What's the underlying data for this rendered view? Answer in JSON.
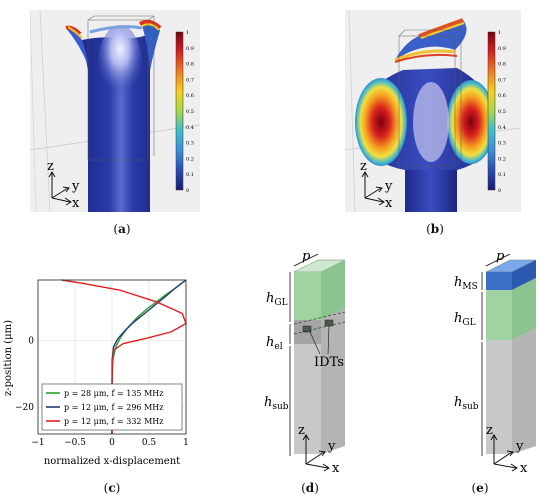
{
  "captions": {
    "a": "a",
    "b": "b",
    "c": "c",
    "d": "d",
    "e": "e"
  },
  "colorbar_ticks": [
    "1",
    "0.9",
    "0.8",
    "0.7",
    "0.6",
    "0.5",
    "0.4",
    "0.3",
    "0.2",
    "0.1",
    "0"
  ],
  "sim_axes": {
    "z": "z",
    "y": "y",
    "x": "x"
  },
  "panel_d": {
    "p": "p",
    "h_gl": "h",
    "h_gl_sub": "GL",
    "h_el": "h",
    "h_el_sub": "el",
    "idts": "IDTs",
    "h_sub": "h",
    "h_sub_sub": "sub",
    "axes": {
      "z": "z",
      "y": "y",
      "x": "x"
    }
  },
  "panel_e": {
    "p": "p",
    "h_ms": "h",
    "h_ms_sub": "MS",
    "h_gl": "h",
    "h_gl_sub": "GL",
    "h_sub": "h",
    "h_sub_sub": "sub",
    "axes": {
      "z": "z",
      "y": "y",
      "x": "x"
    }
  },
  "chart_data": {
    "type": "line",
    "xlabel": "normalized x-displacement",
    "ylabel": "z-position (μm)",
    "xlim": [
      -1,
      1
    ],
    "ylim": [
      -28,
      18
    ],
    "xticks": [
      "−1",
      "−0.5",
      "0",
      "0.5",
      "1"
    ],
    "yticks": [
      "0",
      "−20"
    ],
    "grid": true,
    "legend_position": "bottom",
    "series": [
      {
        "name": "p = 28 μm, f = 135 MHz",
        "color": "#2ca02c",
        "x": [
          0,
          0.002,
          0.01,
          0.05,
          0.12,
          0.22,
          0.35,
          0.48,
          0.6,
          0.72,
          0.85,
          1.0
        ],
        "y": [
          -28,
          -12,
          -6,
          -2,
          1,
          4,
          7,
          9.5,
          11.5,
          13.5,
          15.5,
          18
        ]
      },
      {
        "name": "p = 12 μm, f = 296 MHz",
        "color": "#1f3d7a",
        "x": [
          0,
          0.002,
          0.02,
          0.08,
          0.18,
          0.3,
          0.44,
          0.58,
          0.72,
          0.85,
          1.0
        ],
        "y": [
          -28,
          -6,
          -2,
          0.5,
          3,
          5.5,
          8,
          10.5,
          13,
          15.5,
          18
        ]
      },
      {
        "name": "p = 12 μm, f = 332 MHz",
        "color": "#e02020",
        "x": [
          0,
          0.001,
          0.02,
          0.15,
          0.45,
          0.8,
          1.0,
          0.95,
          0.6,
          0.1,
          -0.4,
          -0.68
        ],
        "y": [
          -28,
          -8,
          -3,
          -1,
          0.5,
          2.5,
          5,
          8,
          11.5,
          15,
          17,
          18
        ]
      }
    ]
  }
}
